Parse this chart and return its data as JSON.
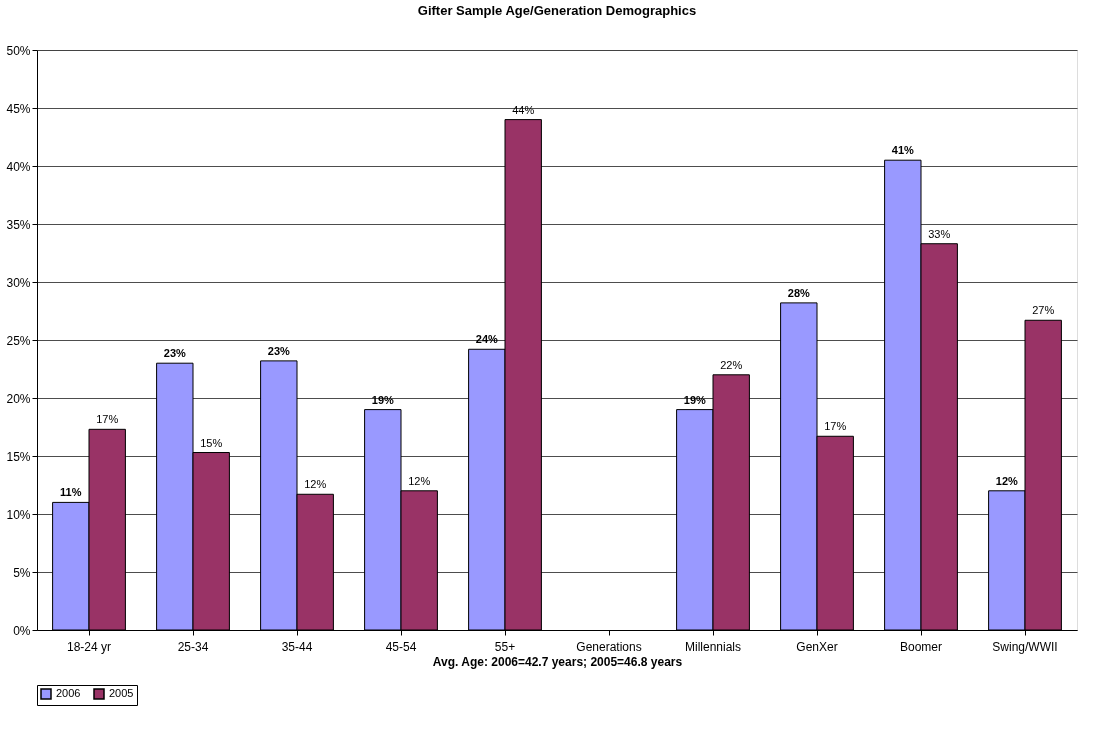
{
  "chart_data": {
    "type": "bar",
    "title": "Gifter Sample Age/Generation Demographics",
    "xlabel": "Avg. Age: 2006=42.7 years; 2005=46.8 years",
    "categories": [
      "18-24 yr",
      "25-34",
      "35-44",
      "45-54",
      "55+",
      "Generations",
      "Millennials",
      "GenXer",
      "Boomer",
      "Swing/WWII"
    ],
    "series": [
      {
        "name": "2006",
        "color": "#9999ff",
        "values": [
          11.0,
          23.0,
          23.2,
          19.0,
          24.2,
          null,
          19.0,
          28.2,
          40.5,
          12.0
        ],
        "value_labels": [
          "11%",
          "23%",
          "23%",
          "19%",
          "24%",
          null,
          "19%",
          "28%",
          "41%",
          "12%"
        ]
      },
      {
        "name": "2005",
        "color": "#993366",
        "values": [
          17.3,
          15.3,
          11.7,
          12.0,
          44.0,
          null,
          22.0,
          16.7,
          33.3,
          26.7
        ],
        "value_labels": [
          "17%",
          "15%",
          "12%",
          "12%",
          "44%",
          null,
          "22%",
          "17%",
          "33%",
          "27%"
        ]
      }
    ],
    "ylim": [
      0,
      50
    ],
    "yticks": [
      {
        "value": 0,
        "label": "0%"
      },
      {
        "value": 5,
        "label": "5%"
      },
      {
        "value": 10,
        "label": "10%"
      },
      {
        "value": 15,
        "label": "15%"
      },
      {
        "value": 20,
        "label": "20%"
      },
      {
        "value": 25,
        "label": "25%"
      },
      {
        "value": 30,
        "label": "30%"
      },
      {
        "value": 35,
        "label": "35%"
      },
      {
        "value": 40,
        "label": "40%"
      },
      {
        "value": 45,
        "label": "45%"
      },
      {
        "value": 50,
        "label": "50%"
      }
    ],
    "grid": "y",
    "legend": "bottom"
  }
}
